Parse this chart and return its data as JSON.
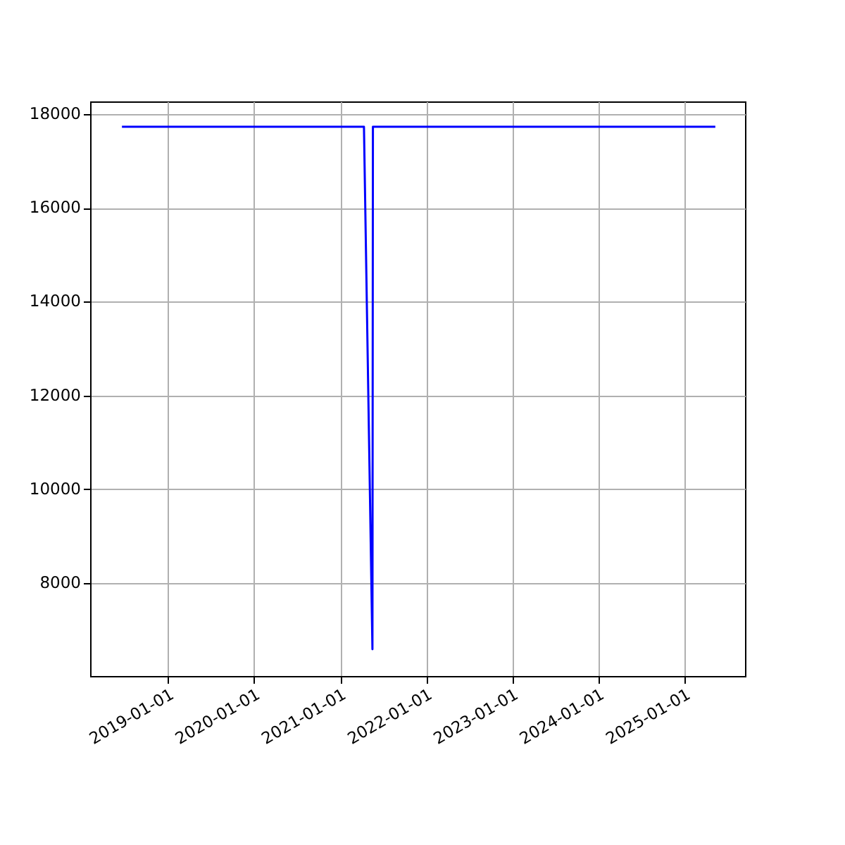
{
  "chart_data": {
    "type": "line",
    "x": [
      "2018-06-20",
      "2021-04-12",
      "2021-05-18",
      "2021-05-20",
      "2025-05-12"
    ],
    "series": [
      {
        "color": "#0000ff",
        "values": [
          17730,
          17730,
          6590,
          17730,
          17730
        ]
      }
    ],
    "xlim": [
      "2018-02-05",
      "2025-09-15"
    ],
    "xticks": [
      "2019-01-01",
      "2020-01-01",
      "2021-01-01",
      "2022-01-01",
      "2023-01-01",
      "2024-01-01",
      "2025-01-01"
    ],
    "ylim": [
      6020,
      18270
    ],
    "yticks": [
      8000,
      10000,
      12000,
      14000,
      16000,
      18000
    ],
    "grid": true
  }
}
